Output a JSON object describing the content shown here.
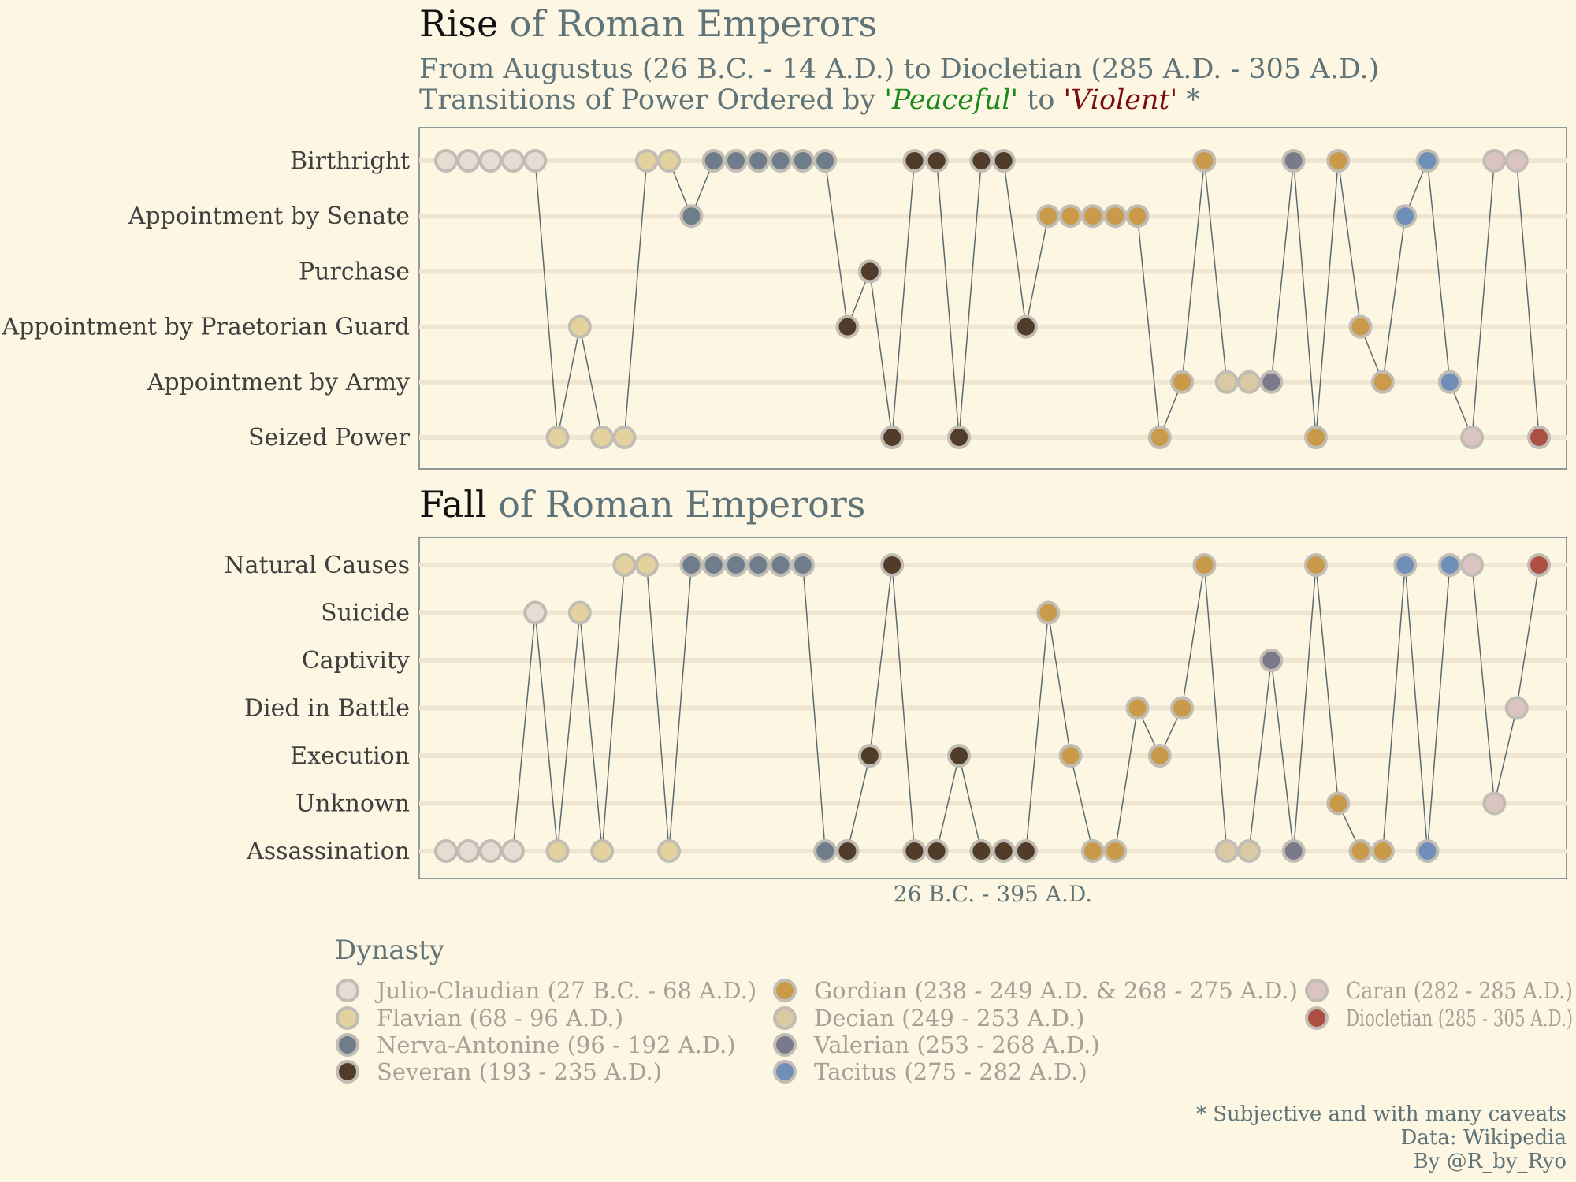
{
  "title_top": {
    "strong": "Rise",
    "rest": " of Roman Emperors"
  },
  "subtitle_line1": "From Augustus (26 B.C. - 14 A.D.) to Diocletian (285 A.D. - 305 A.D.)",
  "subtitle_line2": {
    "prefix": "Transitions of Power Ordered by ",
    "peaceful": "'Peaceful'",
    "middle": " to ",
    "violent": "'Violent'",
    "suffix": " *",
    "peaceful_color": "#1e8a1e",
    "violent_color": "#7a0c0c"
  },
  "title_bottom": {
    "strong": "Fall",
    "rest": " of Roman Emperors"
  },
  "xlabel": "26 B.C. - 395 A.D.",
  "legend_title": "Dynasty",
  "caption": [
    "* Subjective and with many caveats",
    "Data: Wikipedia",
    "By @R_by_Ryo"
  ],
  "chart_data": [
    {
      "type": "line",
      "title": "Rise of Roman Emperors",
      "x_count": 50,
      "categories": [
        "Birthright",
        "Appointment by Senate",
        "Purchase",
        "Appointment by Praetorian Guard",
        "Appointment by Army",
        "Seized Power"
      ],
      "rise": [
        0,
        0,
        0,
        0,
        0,
        5,
        3,
        5,
        5,
        0,
        0,
        1,
        0,
        0,
        0,
        0,
        0,
        0,
        3,
        2,
        5,
        0,
        0,
        5,
        0,
        0,
        3,
        1,
        1,
        1,
        1,
        1,
        5,
        4,
        0,
        4,
        4,
        4,
        0,
        5,
        0,
        3,
        4,
        1,
        0,
        4,
        5,
        0,
        0,
        5
      ],
      "dynasty": [
        0,
        0,
        0,
        0,
        0,
        1,
        1,
        1,
        1,
        1,
        1,
        2,
        2,
        2,
        2,
        2,
        2,
        2,
        3,
        3,
        3,
        3,
        3,
        3,
        3,
        3,
        3,
        4,
        4,
        4,
        4,
        4,
        4,
        4,
        4,
        5,
        5,
        6,
        6,
        4,
        4,
        4,
        4,
        7,
        7,
        7,
        8,
        8,
        8,
        9
      ]
    },
    {
      "type": "line",
      "title": "Fall of Roman Emperors",
      "x_count": 50,
      "categories": [
        "Natural Causes",
        "Suicide",
        "Captivity",
        "Died in Battle",
        "Execution",
        "Unknown",
        "Assassination"
      ],
      "fall": [
        6,
        6,
        6,
        6,
        1,
        6,
        1,
        6,
        0,
        0,
        6,
        0,
        0,
        0,
        0,
        0,
        0,
        6,
        6,
        4,
        0,
        6,
        6,
        4,
        6,
        6,
        6,
        1,
        4,
        6,
        6,
        3,
        4,
        3,
        0,
        6,
        6,
        2,
        6,
        0,
        5,
        6,
        6,
        0,
        6,
        0,
        0,
        5,
        3,
        0
      ]
    }
  ],
  "dynasties": [
    {
      "name": "Julio-Claudian (27 B.C. - 68 A.D.)",
      "color": "#e7dcd4"
    },
    {
      "name": "Flavian (68 - 96 A.D.)",
      "color": "#e3d29d"
    },
    {
      "name": "Nerva-Antonine (96 - 192 A.D.)",
      "color": "#6f7d8a"
    },
    {
      "name": "Severan (193 - 235 A.D.)",
      "color": "#503c28"
    },
    {
      "name": "Gordian (238 - 249 A.D. & 268 - 275 A.D.)",
      "color": "#c99a4a"
    },
    {
      "name": "Decian (249 - 253 A.D.)",
      "color": "#dac9a3"
    },
    {
      "name": "Valerian (253 - 268 A.D.)",
      "color": "#7a7a8a"
    },
    {
      "name": "Tacitus (275 - 282 A.D.)",
      "color": "#6f8fb8"
    },
    {
      "name": "Caran (282 - 285 A.D.)",
      "color": "#dbc4c0"
    },
    {
      "name": "Diocletian (285 - 305 A.D.)",
      "color": "#ad5042"
    }
  ]
}
